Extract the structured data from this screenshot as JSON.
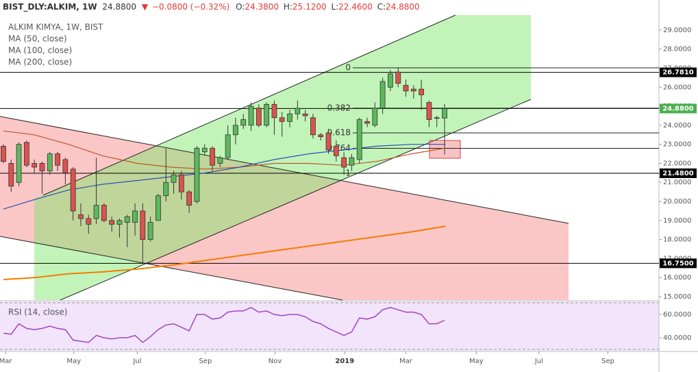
{
  "header": {
    "symbol": "BIST_DLY:ALKIM, 1W",
    "last": "24.8800",
    "arrow": "▼",
    "change": "−0.0800 (−0.32%)",
    "o_label": "O:",
    "o": "24.3800",
    "h_label": "H:",
    "h": "25.1200",
    "l_label": "L:",
    "l": "22.4600",
    "c_label": "C:",
    "c": "24.8800"
  },
  "chart_data": [
    {
      "type": "candlestick",
      "title": "ALKIM KIMYA, 1W, BIST",
      "x": [
        0,
        1,
        2,
        3,
        4,
        5,
        6,
        7,
        8,
        9,
        10,
        11,
        12,
        13,
        14,
        15,
        16,
        17,
        18,
        19,
        20,
        21,
        22,
        23,
        24,
        25,
        26,
        27,
        28,
        29,
        30,
        31,
        32,
        33,
        34,
        35,
        36,
        37,
        38,
        39,
        40,
        41,
        42,
        43,
        44,
        45,
        46,
        47,
        48,
        49,
        50,
        51,
        52,
        53,
        54,
        55,
        56,
        57
      ],
      "open": [
        22.9,
        22.0,
        21.0,
        23.1,
        22.0,
        22.0,
        21.6,
        22.5,
        22.2,
        21.7,
        19.3,
        19.1,
        19.1,
        19.8,
        19.0,
        18.8,
        18.9,
        18.9,
        19.5,
        18.0,
        19.0,
        20.3,
        21.0,
        21.4,
        20.5,
        20.0,
        22.6,
        22.8,
        22.0,
        22.3,
        23.5,
        24.0,
        24.0,
        24.9,
        24.0,
        25.1,
        24.4,
        24.2,
        24.6,
        24.6,
        24.4,
        23.5,
        23.6,
        22.9,
        22.3,
        21.9,
        22.2,
        24.2,
        24.0,
        24.9,
        26.0,
        26.8,
        26.1,
        25.9,
        25.9,
        25.2,
        24.4,
        24.38
      ],
      "high": [
        23.0,
        22.2,
        23.1,
        23.2,
        22.2,
        22.1,
        22.6,
        22.6,
        22.3,
        21.8,
        19.9,
        19.3,
        22.3,
        19.9,
        19.2,
        19.1,
        19.3,
        19.9,
        19.9,
        19.2,
        20.4,
        22.8,
        21.6,
        21.6,
        20.6,
        22.9,
        23.0,
        22.9,
        22.4,
        24.0,
        24.4,
        24.6,
        25.2,
        25.1,
        25.2,
        25.3,
        24.7,
        24.8,
        25.3,
        24.8,
        24.6,
        23.6,
        23.8,
        23.2,
        22.6,
        22.5,
        24.4,
        24.4,
        25.2,
        26.5,
        26.9,
        27.0,
        26.4,
        26.1,
        26.4,
        25.3,
        24.5,
        25.12
      ],
      "low": [
        22.0,
        20.5,
        20.8,
        21.8,
        21.5,
        20.4,
        21.4,
        21.6,
        20.9,
        19.0,
        18.7,
        18.3,
        18.8,
        18.9,
        18.4,
        18.1,
        17.6,
        18.2,
        16.8,
        17.9,
        19.0,
        20.0,
        20.4,
        20.1,
        19.4,
        19.9,
        22.4,
        21.6,
        21.8,
        22.2,
        23.0,
        23.8,
        23.7,
        23.9,
        23.9,
        23.5,
        23.4,
        23.9,
        24.3,
        24.2,
        23.3,
        23.2,
        22.5,
        22.1,
        21.4,
        21.6,
        22.0,
        23.9,
        23.9,
        24.6,
        25.8,
        26.0,
        25.5,
        25.4,
        24.8,
        23.9,
        23.9,
        22.46
      ],
      "close": [
        22.1,
        20.8,
        23.0,
        21.9,
        21.8,
        21.6,
        22.5,
        21.9,
        21.5,
        19.5,
        19.1,
        18.8,
        19.8,
        19.0,
        18.8,
        19.0,
        19.2,
        19.5,
        18.0,
        18.9,
        20.3,
        21.0,
        21.4,
        20.5,
        19.8,
        22.8,
        22.8,
        21.9,
        22.3,
        23.5,
        24.0,
        24.3,
        25.0,
        24.0,
        25.1,
        24.4,
        24.2,
        24.6,
        24.9,
        24.5,
        23.5,
        23.4,
        22.7,
        22.4,
        21.8,
        22.3,
        24.3,
        24.1,
        24.9,
        26.3,
        26.7,
        26.2,
        25.8,
        25.8,
        25.6,
        24.3,
        24.4,
        24.88
      ],
      "up_color": "#5cb85c",
      "down_color": "#d9534f",
      "overlays": [
        {
          "name": "MA (50, close)",
          "color": "#c0562b",
          "x": [
            0,
            4,
            8.4,
            12.8,
            17.3,
            21.7,
            26.1,
            30.5,
            35,
            39.4,
            43.8,
            48.2,
            52.7,
            57.1
          ],
          "values": [
            23.7,
            23.5,
            23.0,
            22.4,
            22.0,
            21.8,
            21.7,
            21.8,
            22.0,
            22.0,
            21.9,
            22.1,
            22.5,
            22.8
          ]
        },
        {
          "name": "MA (100, close)",
          "color": "#2a4fb5",
          "x": [
            0,
            4,
            8.4,
            12.8,
            17.3,
            21.7,
            26.1,
            30.5,
            35,
            39.4,
            43.8,
            48.2,
            52.7,
            57.1
          ],
          "values": [
            19.6,
            20.1,
            20.6,
            20.9,
            21.1,
            21.3,
            21.5,
            21.8,
            22.2,
            22.5,
            22.7,
            22.9,
            23.0,
            23.0
          ]
        },
        {
          "name": "MA (200, close)",
          "color": "#f57c00",
          "x": [
            0,
            4,
            8.4,
            12.8,
            17.3,
            21.7,
            26.1,
            30.5,
            35,
            39.4,
            43.8,
            48.2,
            52.7,
            57.1
          ],
          "values": [
            15.9,
            16.0,
            16.2,
            16.3,
            16.45,
            16.65,
            16.9,
            17.15,
            17.4,
            17.65,
            17.9,
            18.15,
            18.4,
            18.7
          ]
        }
      ],
      "fibonacci": {
        "ratios": [
          0,
          0.382,
          0.618,
          0.764,
          1
        ],
        "values": [
          27.02,
          24.9,
          23.6,
          22.79,
          21.48
        ]
      },
      "price_lines": [
        {
          "value": 26.781,
          "label": "26.7810",
          "color": "#000000"
        },
        {
          "value": 24.88,
          "label": "24.8800",
          "color": "#4caf50"
        },
        {
          "value": 21.48,
          "label": "21.4800",
          "color": "#000000"
        },
        {
          "value": 16.75,
          "label": "16.7500",
          "color": "#000000"
        }
      ],
      "xlim": [
        -0.44,
        84.7
      ],
      "xticks": [
        {
          "value": 0.27,
          "label": "Mar"
        },
        {
          "value": 9.1,
          "label": "May"
        },
        {
          "value": 17.3,
          "label": "Jul"
        },
        {
          "value": 26.1,
          "label": "Sep"
        },
        {
          "value": 35.1,
          "label": "Nov"
        },
        {
          "value": 44.1,
          "label": "2019"
        },
        {
          "value": 52,
          "label": "Mar"
        },
        {
          "value": 61.1,
          "label": "May"
        },
        {
          "value": 69.2,
          "label": "Jul"
        },
        {
          "value": 78.1,
          "label": "Sep"
        }
      ],
      "ylim": [
        14.82,
        30.58
      ],
      "yticks": [
        {
          "value": 15,
          "label": "15.0000"
        },
        {
          "value": 16,
          "label": "16.0000"
        },
        {
          "value": 17,
          "label": "17.0000"
        },
        {
          "value": 18,
          "label": "18.0000"
        },
        {
          "value": 19,
          "label": "19.0000"
        },
        {
          "value": 20,
          "label": "20.0000"
        },
        {
          "value": 21,
          "label": "21.0000"
        },
        {
          "value": 22,
          "label": "22.0000"
        },
        {
          "value": 23,
          "label": "23.0000"
        },
        {
          "value": 24,
          "label": "24.0000"
        },
        {
          "value": 25,
          "label": "25.0000"
        },
        {
          "value": 26,
          "label": "26.0000"
        },
        {
          "value": 27,
          "label": "27.0000"
        },
        {
          "value": 28,
          "label": "28.0000"
        },
        {
          "value": 29,
          "label": "29.0000"
        }
      ]
    },
    {
      "type": "line",
      "title": "RSI (14, close)",
      "color": "#a044c4",
      "x": [
        0,
        1,
        2,
        3,
        4,
        5,
        6,
        7,
        8,
        9,
        10,
        11,
        12,
        13,
        14,
        15,
        16,
        17,
        18,
        19,
        20,
        21,
        22,
        23,
        24,
        25,
        26,
        27,
        28,
        29,
        30,
        31,
        32,
        33,
        34,
        35,
        36,
        37,
        38,
        39,
        40,
        41,
        42,
        43,
        44,
        45,
        46,
        47,
        48,
        49,
        50,
        51,
        52,
        53,
        54,
        55,
        56,
        57
      ],
      "values": [
        44,
        43,
        52,
        48,
        47,
        48,
        50,
        48,
        47,
        38,
        37,
        36,
        42,
        40,
        39,
        40,
        40,
        42,
        36,
        41,
        47,
        51,
        52,
        49,
        46,
        60,
        60,
        56,
        57,
        62,
        63,
        63,
        66,
        62,
        63,
        60,
        59,
        60,
        60,
        58,
        54,
        52,
        48,
        45,
        42,
        45,
        57,
        56,
        58,
        64,
        66,
        64,
        62,
        62,
        60,
        52,
        52,
        55
      ],
      "bands": [
        70,
        30
      ],
      "xlim": [
        -0.44,
        84.7
      ],
      "ylim": [
        28.8,
        71.2
      ],
      "yticks": [
        {
          "value": 40,
          "label": "40.0000"
        },
        {
          "value": 60,
          "label": "60.0000"
        }
      ]
    }
  ]
}
